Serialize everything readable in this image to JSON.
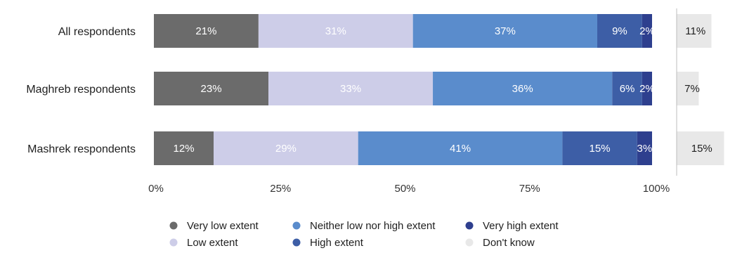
{
  "chart_data": {
    "type": "bar",
    "orientation": "horizontal",
    "stacked": true,
    "categories": [
      "All respondents",
      "Maghreb respondents",
      "Mashrek respondents"
    ],
    "series": [
      {
        "name": "Very low extent",
        "values": [
          21,
          23,
          12
        ],
        "labels": [
          "21%",
          "23%",
          "12%"
        ],
        "color": "#6b6b6b",
        "label_color": "#ffffff"
      },
      {
        "name": "Low extent",
        "values": [
          31,
          33,
          29
        ],
        "labels": [
          "31%",
          "33%",
          "29%"
        ],
        "color": "#cdcde8",
        "label_color": "#ffffff"
      },
      {
        "name": "Neither low nor high extent",
        "values": [
          37,
          36,
          41
        ],
        "labels": [
          "37%",
          "36%",
          "41%"
        ],
        "color": "#5a8ccc",
        "label_color": "#ffffff"
      },
      {
        "name": "High extent",
        "values": [
          9,
          6,
          15
        ],
        "labels": [
          "9%",
          "6%",
          "15%"
        ],
        "color": "#3d5ea6",
        "label_color": "#ffffff"
      },
      {
        "name": "Very high extent",
        "values": [
          2,
          2,
          3
        ],
        "labels": [
          "2%",
          "2%",
          "3%"
        ],
        "color": "#2e3f8e",
        "label_color": "#ffffff"
      }
    ],
    "side_series": {
      "name": "Don't know",
      "values": [
        11,
        7,
        15
      ],
      "labels": [
        "11%",
        "7%",
        "15%"
      ],
      "color": "#e8e8e8",
      "label_color": "#1f1f1f"
    },
    "x_ticks": [
      "0%",
      "25%",
      "50%",
      "75%",
      "100%"
    ],
    "xlim": [
      0,
      100
    ],
    "grid": false,
    "legend_position": "bottom-center",
    "legend_order": [
      "Very low extent",
      "Neither low nor high extent",
      "Very high extent",
      "Low extent",
      "High extent",
      "Don't know"
    ]
  }
}
